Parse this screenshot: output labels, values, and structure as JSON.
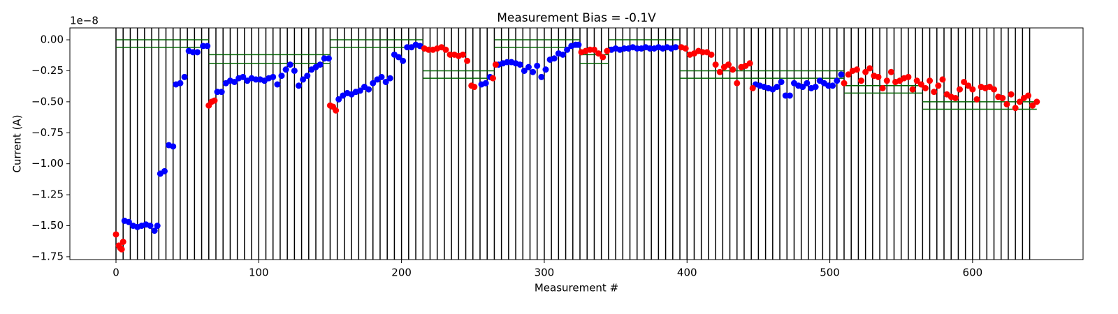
{
  "chart_data": {
    "type": "scatter",
    "title": "Measurement Bias = -0.1V",
    "xlabel": "Measurement #",
    "ylabel": "Current (A)",
    "y_offset_label": "1e−8",
    "xlim": [
      -32.3,
      677.4
    ],
    "ylim": [
      -1.773,
      0.096
    ],
    "xticks": [
      0,
      100,
      200,
      300,
      400,
      500,
      600
    ],
    "yticks": [
      {
        "value": 0,
        "label": "0.00"
      },
      {
        "value": -0.25,
        "label": "−0.25"
      },
      {
        "value": -0.5,
        "label": "−0.50"
      },
      {
        "value": -0.75,
        "label": "−0.75"
      },
      {
        "value": -1.0,
        "label": "−1.00"
      },
      {
        "value": -1.25,
        "label": "−1.25"
      },
      {
        "value": -1.5,
        "label": "−1.50"
      },
      {
        "value": -1.75,
        "label": "−1.75"
      }
    ],
    "vlines": {
      "color": "#000000",
      "x": [
        0,
        5,
        10,
        15,
        20,
        25,
        30,
        35,
        40,
        45,
        50,
        55,
        60,
        65,
        70,
        75,
        80,
        85,
        90,
        95,
        100,
        105,
        110,
        115,
        120,
        125,
        130,
        135,
        140,
        145,
        150,
        155,
        160,
        165,
        170,
        175,
        180,
        185,
        190,
        195,
        200,
        205,
        210,
        215,
        220,
        225,
        230,
        235,
        240,
        245,
        250,
        255,
        260,
        265,
        270,
        275,
        280,
        285,
        290,
        295,
        300,
        305,
        310,
        315,
        320,
        325,
        330,
        335,
        340,
        345,
        350,
        355,
        360,
        365,
        370,
        375,
        380,
        385,
        390,
        395,
        400,
        405,
        410,
        415,
        420,
        425,
        430,
        435,
        440,
        445,
        450,
        455,
        460,
        465,
        470,
        475,
        480,
        485,
        490,
        495,
        500,
        505,
        510,
        515,
        520,
        525,
        530,
        535,
        540,
        545,
        550,
        555,
        560,
        565,
        570,
        575,
        580,
        585,
        590,
        595,
        600,
        605,
        610,
        615,
        620,
        625,
        630,
        635,
        640
      ]
    },
    "hlines": {
      "color": "#006400",
      "segments": [
        {
          "y": 0.0,
          "xmin": 0,
          "xmax": 65
        },
        {
          "y": -0.06,
          "xmin": 0,
          "xmax": 65
        },
        {
          "y": -0.12,
          "xmin": 65,
          "xmax": 150
        },
        {
          "y": -0.19,
          "xmin": 65,
          "xmax": 150
        },
        {
          "y": 0.0,
          "xmin": 150,
          "xmax": 215
        },
        {
          "y": -0.06,
          "xmin": 150,
          "xmax": 215
        },
        {
          "y": -0.25,
          "xmin": 215,
          "xmax": 265
        },
        {
          "y": -0.31,
          "xmin": 215,
          "xmax": 265
        },
        {
          "y": 0.0,
          "xmin": 265,
          "xmax": 325
        },
        {
          "y": -0.06,
          "xmin": 265,
          "xmax": 325
        },
        {
          "y": -0.12,
          "xmin": 325,
          "xmax": 345
        },
        {
          "y": -0.19,
          "xmin": 325,
          "xmax": 345
        },
        {
          "y": 0.0,
          "xmin": 345,
          "xmax": 395
        },
        {
          "y": -0.06,
          "xmin": 345,
          "xmax": 395
        },
        {
          "y": -0.25,
          "xmin": 395,
          "xmax": 510
        },
        {
          "y": -0.31,
          "xmin": 395,
          "xmax": 510
        },
        {
          "y": -0.37,
          "xmin": 510,
          "xmax": 565
        },
        {
          "y": -0.43,
          "xmin": 510,
          "xmax": 565
        },
        {
          "y": -0.5,
          "xmin": 565,
          "xmax": 645
        },
        {
          "y": -0.56,
          "xmin": 565,
          "xmax": 645
        }
      ]
    },
    "series": [
      {
        "color": "#0000ff",
        "x": [
          6,
          9,
          12,
          15,
          18,
          21,
          24,
          27,
          29,
          31,
          34,
          37,
          40,
          42,
          45,
          48,
          51,
          54,
          57,
          61,
          64,
          71,
          74,
          77,
          80,
          83,
          86,
          89,
          92,
          95,
          98,
          101,
          104,
          107,
          110,
          113,
          116,
          119,
          122,
          125,
          128,
          131,
          134,
          137,
          140,
          143,
          146,
          149,
          156,
          159,
          162,
          165,
          168,
          171,
          174,
          177,
          180,
          183,
          186,
          189,
          192,
          195,
          198,
          201,
          204,
          207,
          210,
          213,
          256,
          259,
          262,
          268,
          271,
          274,
          277,
          280,
          283,
          286,
          289,
          292,
          295,
          298,
          301,
          304,
          307,
          310,
          313,
          316,
          319,
          322,
          324,
          347,
          350,
          353,
          356,
          359,
          362,
          365,
          368,
          371,
          374,
          377,
          380,
          383,
          386,
          389,
          392,
          448,
          451,
          454,
          457,
          460,
          463,
          466,
          469,
          472,
          475,
          478,
          481,
          484,
          487,
          490,
          493,
          496,
          499,
          502,
          505,
          508
        ],
        "y": [
          -1.46,
          -1.47,
          -1.5,
          -1.51,
          -1.5,
          -1.49,
          -1.5,
          -1.54,
          -1.5,
          -1.08,
          -1.06,
          -0.85,
          -0.86,
          -0.36,
          -0.35,
          -0.3,
          -0.09,
          -0.1,
          -0.1,
          -0.05,
          -0.05,
          -0.42,
          -0.42,
          -0.35,
          -0.33,
          -0.34,
          -0.31,
          -0.3,
          -0.33,
          -0.31,
          -0.32,
          -0.32,
          -0.33,
          -0.31,
          -0.3,
          -0.36,
          -0.29,
          -0.24,
          -0.2,
          -0.25,
          -0.37,
          -0.32,
          -0.29,
          -0.24,
          -0.22,
          -0.2,
          -0.15,
          -0.15,
          -0.48,
          -0.45,
          -0.43,
          -0.44,
          -0.42,
          -0.41,
          -0.38,
          -0.4,
          -0.35,
          -0.32,
          -0.3,
          -0.34,
          -0.31,
          -0.12,
          -0.14,
          -0.17,
          -0.06,
          -0.06,
          -0.04,
          -0.05,
          -0.36,
          -0.35,
          -0.3,
          -0.2,
          -0.19,
          -0.18,
          -0.18,
          -0.19,
          -0.2,
          -0.25,
          -0.22,
          -0.26,
          -0.21,
          -0.3,
          -0.24,
          -0.16,
          -0.15,
          -0.11,
          -0.12,
          -0.08,
          -0.05,
          -0.04,
          -0.04,
          -0.08,
          -0.07,
          -0.08,
          -0.07,
          -0.07,
          -0.06,
          -0.07,
          -0.07,
          -0.06,
          -0.07,
          -0.07,
          -0.06,
          -0.07,
          -0.06,
          -0.07,
          -0.06,
          -0.36,
          -0.37,
          -0.38,
          -0.39,
          -0.4,
          -0.38,
          -0.34,
          -0.45,
          -0.45,
          -0.35,
          -0.37,
          -0.38,
          -0.35,
          -0.39,
          -0.38,
          -0.33,
          -0.35,
          -0.37,
          -0.37,
          -0.33,
          -0.28
        ]
      },
      {
        "color": "#ff0000",
        "x": [
          0,
          2,
          3,
          4,
          5,
          65,
          67,
          69,
          150,
          152,
          154,
          216,
          219,
          222,
          225,
          228,
          231,
          234,
          237,
          240,
          243,
          246,
          249,
          251,
          264,
          266,
          326,
          329,
          332,
          335,
          338,
          341,
          344,
          396,
          399,
          402,
          405,
          408,
          411,
          414,
          417,
          420,
          423,
          426,
          429,
          432,
          435,
          438,
          441,
          444,
          446,
          510,
          513,
          516,
          519,
          522,
          525,
          528,
          531,
          534,
          537,
          540,
          543,
          546,
          549,
          552,
          555,
          558,
          561,
          564,
          567,
          570,
          573,
          576,
          579,
          582,
          585,
          588,
          591,
          594,
          597,
          600,
          603,
          606,
          609,
          612,
          615,
          618,
          621,
          624,
          627,
          630,
          633,
          636,
          639,
          642,
          645
        ],
        "y": [
          -1.57,
          -1.66,
          -1.68,
          -1.69,
          -1.63,
          -0.53,
          -0.5,
          -0.49,
          -0.53,
          -0.54,
          -0.57,
          -0.07,
          -0.08,
          -0.08,
          -0.07,
          -0.06,
          -0.08,
          -0.12,
          -0.12,
          -0.13,
          -0.12,
          -0.17,
          -0.37,
          -0.38,
          -0.31,
          -0.2,
          -0.1,
          -0.09,
          -0.08,
          -0.08,
          -0.11,
          -0.14,
          -0.09,
          -0.06,
          -0.07,
          -0.12,
          -0.11,
          -0.09,
          -0.1,
          -0.1,
          -0.12,
          -0.2,
          -0.26,
          -0.22,
          -0.2,
          -0.24,
          -0.35,
          -0.22,
          -0.21,
          -0.19,
          -0.39,
          -0.35,
          -0.28,
          -0.25,
          -0.24,
          -0.33,
          -0.26,
          -0.23,
          -0.29,
          -0.3,
          -0.39,
          -0.33,
          -0.26,
          -0.34,
          -0.33,
          -0.31,
          -0.3,
          -0.4,
          -0.33,
          -0.36,
          -0.39,
          -0.33,
          -0.42,
          -0.37,
          -0.32,
          -0.44,
          -0.46,
          -0.47,
          -0.4,
          -0.34,
          -0.37,
          -0.4,
          -0.48,
          -0.38,
          -0.39,
          -0.38,
          -0.4,
          -0.46,
          -0.47,
          -0.52,
          -0.44,
          -0.55,
          -0.5,
          -0.47,
          -0.45,
          -0.53,
          -0.5
        ]
      }
    ]
  }
}
